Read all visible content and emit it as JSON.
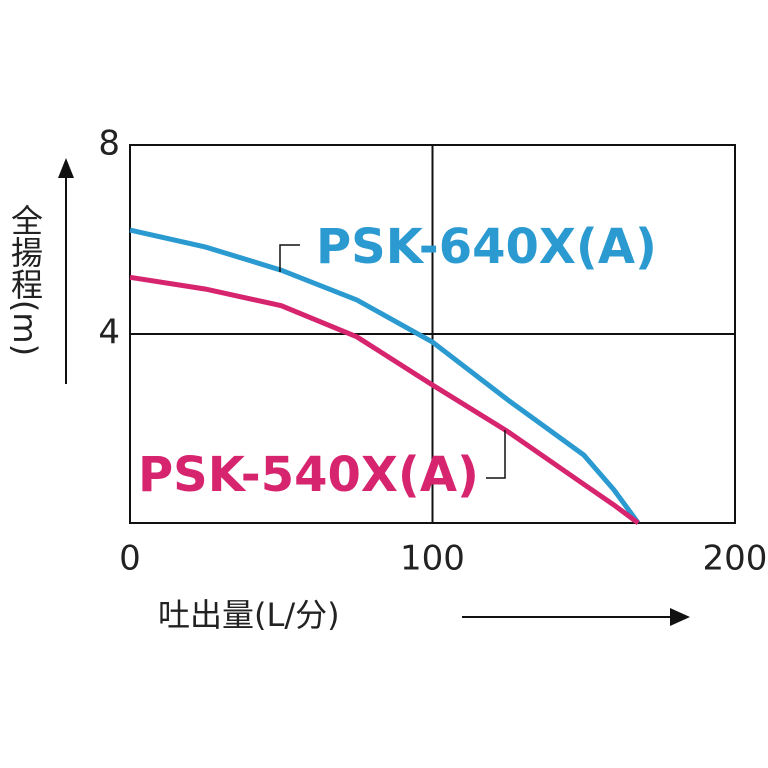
{
  "chart_data": {
    "type": "line",
    "x_label": "吐出量(L/分)",
    "y_label": "全揚程(m)",
    "x": [
      0,
      25,
      50,
      75,
      100,
      125,
      150,
      160,
      168
    ],
    "series": [
      {
        "name": "PSK-640X(A)",
        "color": "#2b9ad0",
        "values": [
          6.2,
          5.84,
          5.35,
          4.72,
          3.83,
          2.6,
          1.44,
          0.7,
          0
        ]
      },
      {
        "name": "PSK-540X(A)",
        "color": "#d6246e",
        "values": [
          5.2,
          4.95,
          4.6,
          3.94,
          2.92,
          1.93,
          0.82,
          0.38,
          0
        ]
      }
    ],
    "xlim": [
      0,
      200
    ],
    "xticks": [
      0,
      100,
      200
    ],
    "ylim": [
      0,
      8
    ],
    "yticks": [
      4,
      8
    ],
    "grid": true
  }
}
